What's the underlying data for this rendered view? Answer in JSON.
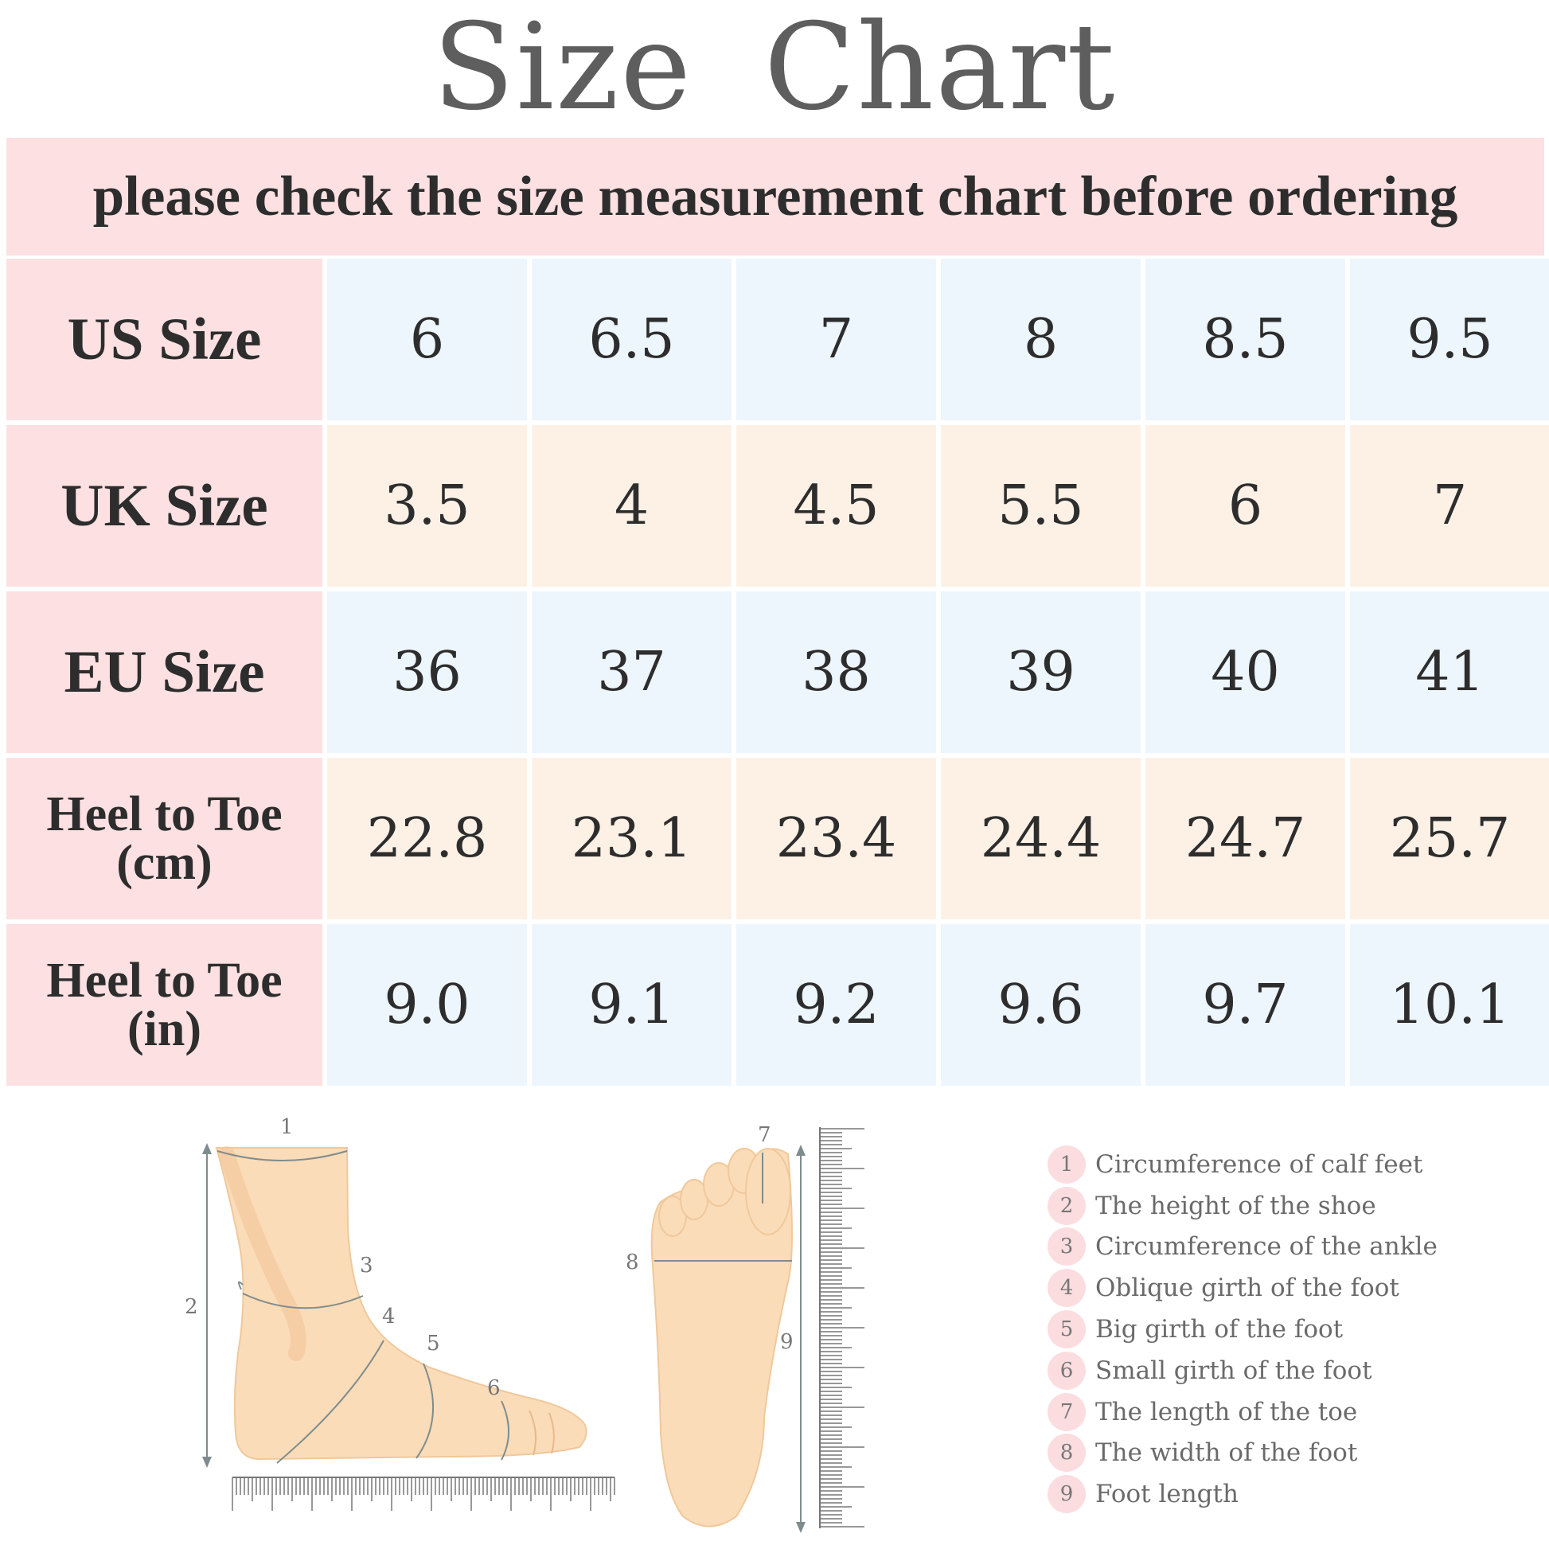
{
  "title": "Size  Chart",
  "banner": "please check the size measurement chart before ordering",
  "table": {
    "rows": [
      {
        "label": "US Size",
        "values": [
          "6",
          "6.5",
          "7",
          "8",
          "8.5",
          "9.5"
        ]
      },
      {
        "label": "UK Size",
        "values": [
          "3.5",
          "4",
          "4.5",
          "5.5",
          "6",
          "7"
        ]
      },
      {
        "label": "EU Size",
        "values": [
          "36",
          "37",
          "38",
          "39",
          "40",
          "41"
        ]
      },
      {
        "label_line1": "Heel to Toe",
        "label_line2": "(cm)",
        "values": [
          "22.8",
          "23.1",
          "23.4",
          "24.4",
          "24.7",
          "25.7"
        ]
      },
      {
        "label_line1": "Heel to Toe",
        "label_line2": "(in)",
        "values": [
          "9.0",
          "9.1",
          "9.2",
          "9.6",
          "9.7",
          "10.1"
        ]
      }
    ]
  },
  "diagram": {
    "side_numbers": [
      "1",
      "2",
      "3",
      "4",
      "5",
      "6"
    ],
    "sole_numbers": [
      "7",
      "8",
      "9"
    ]
  },
  "legend": [
    {
      "num": "1",
      "text": "Circumference of calf feet"
    },
    {
      "num": "2",
      "text": "The height of the shoe"
    },
    {
      "num": "3",
      "text": "Circumference of the ankle"
    },
    {
      "num": "4",
      "text": "Oblique girth of the foot"
    },
    {
      "num": "5",
      "text": "Big girth of the foot"
    },
    {
      "num": "6",
      "text": "Small girth of the foot"
    },
    {
      "num": "7",
      "text": "The length of the toe"
    },
    {
      "num": "8",
      "text": "The width of the foot"
    },
    {
      "num": "9",
      "text": "Foot length"
    }
  ],
  "colors": {
    "label_bg": "#fde0e2",
    "blue_bg": "#edf5fd",
    "peach_bg": "#fdf1e6",
    "skin": "#fbdcb8",
    "title": "#5e5e5e"
  }
}
